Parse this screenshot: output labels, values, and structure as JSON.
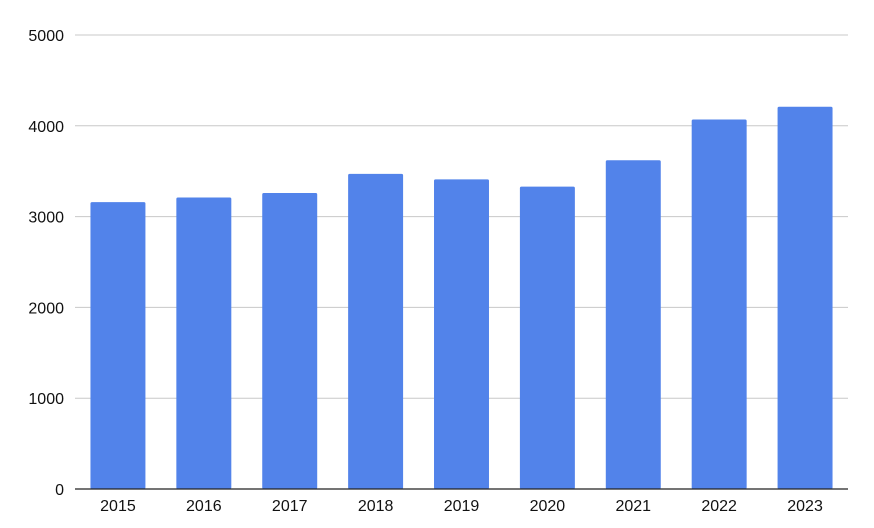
{
  "chart_data": {
    "type": "bar",
    "categories": [
      "2015",
      "2016",
      "2017",
      "2018",
      "2019",
      "2020",
      "2021",
      "2022",
      "2023"
    ],
    "values": [
      3160,
      3210,
      3260,
      3470,
      3410,
      3330,
      3620,
      4070,
      4210
    ],
    "title": "",
    "xlabel": "",
    "ylabel": "",
    "ylim": [
      0,
      5000
    ],
    "yticks": [
      "0",
      "1000",
      "2000",
      "3000",
      "4000",
      "5000"
    ],
    "grid": true,
    "legend": "none",
    "colors": {
      "bar": "#5283ea",
      "grid": "#c8c8c8",
      "axis": "#222222",
      "text": "#111111"
    }
  }
}
